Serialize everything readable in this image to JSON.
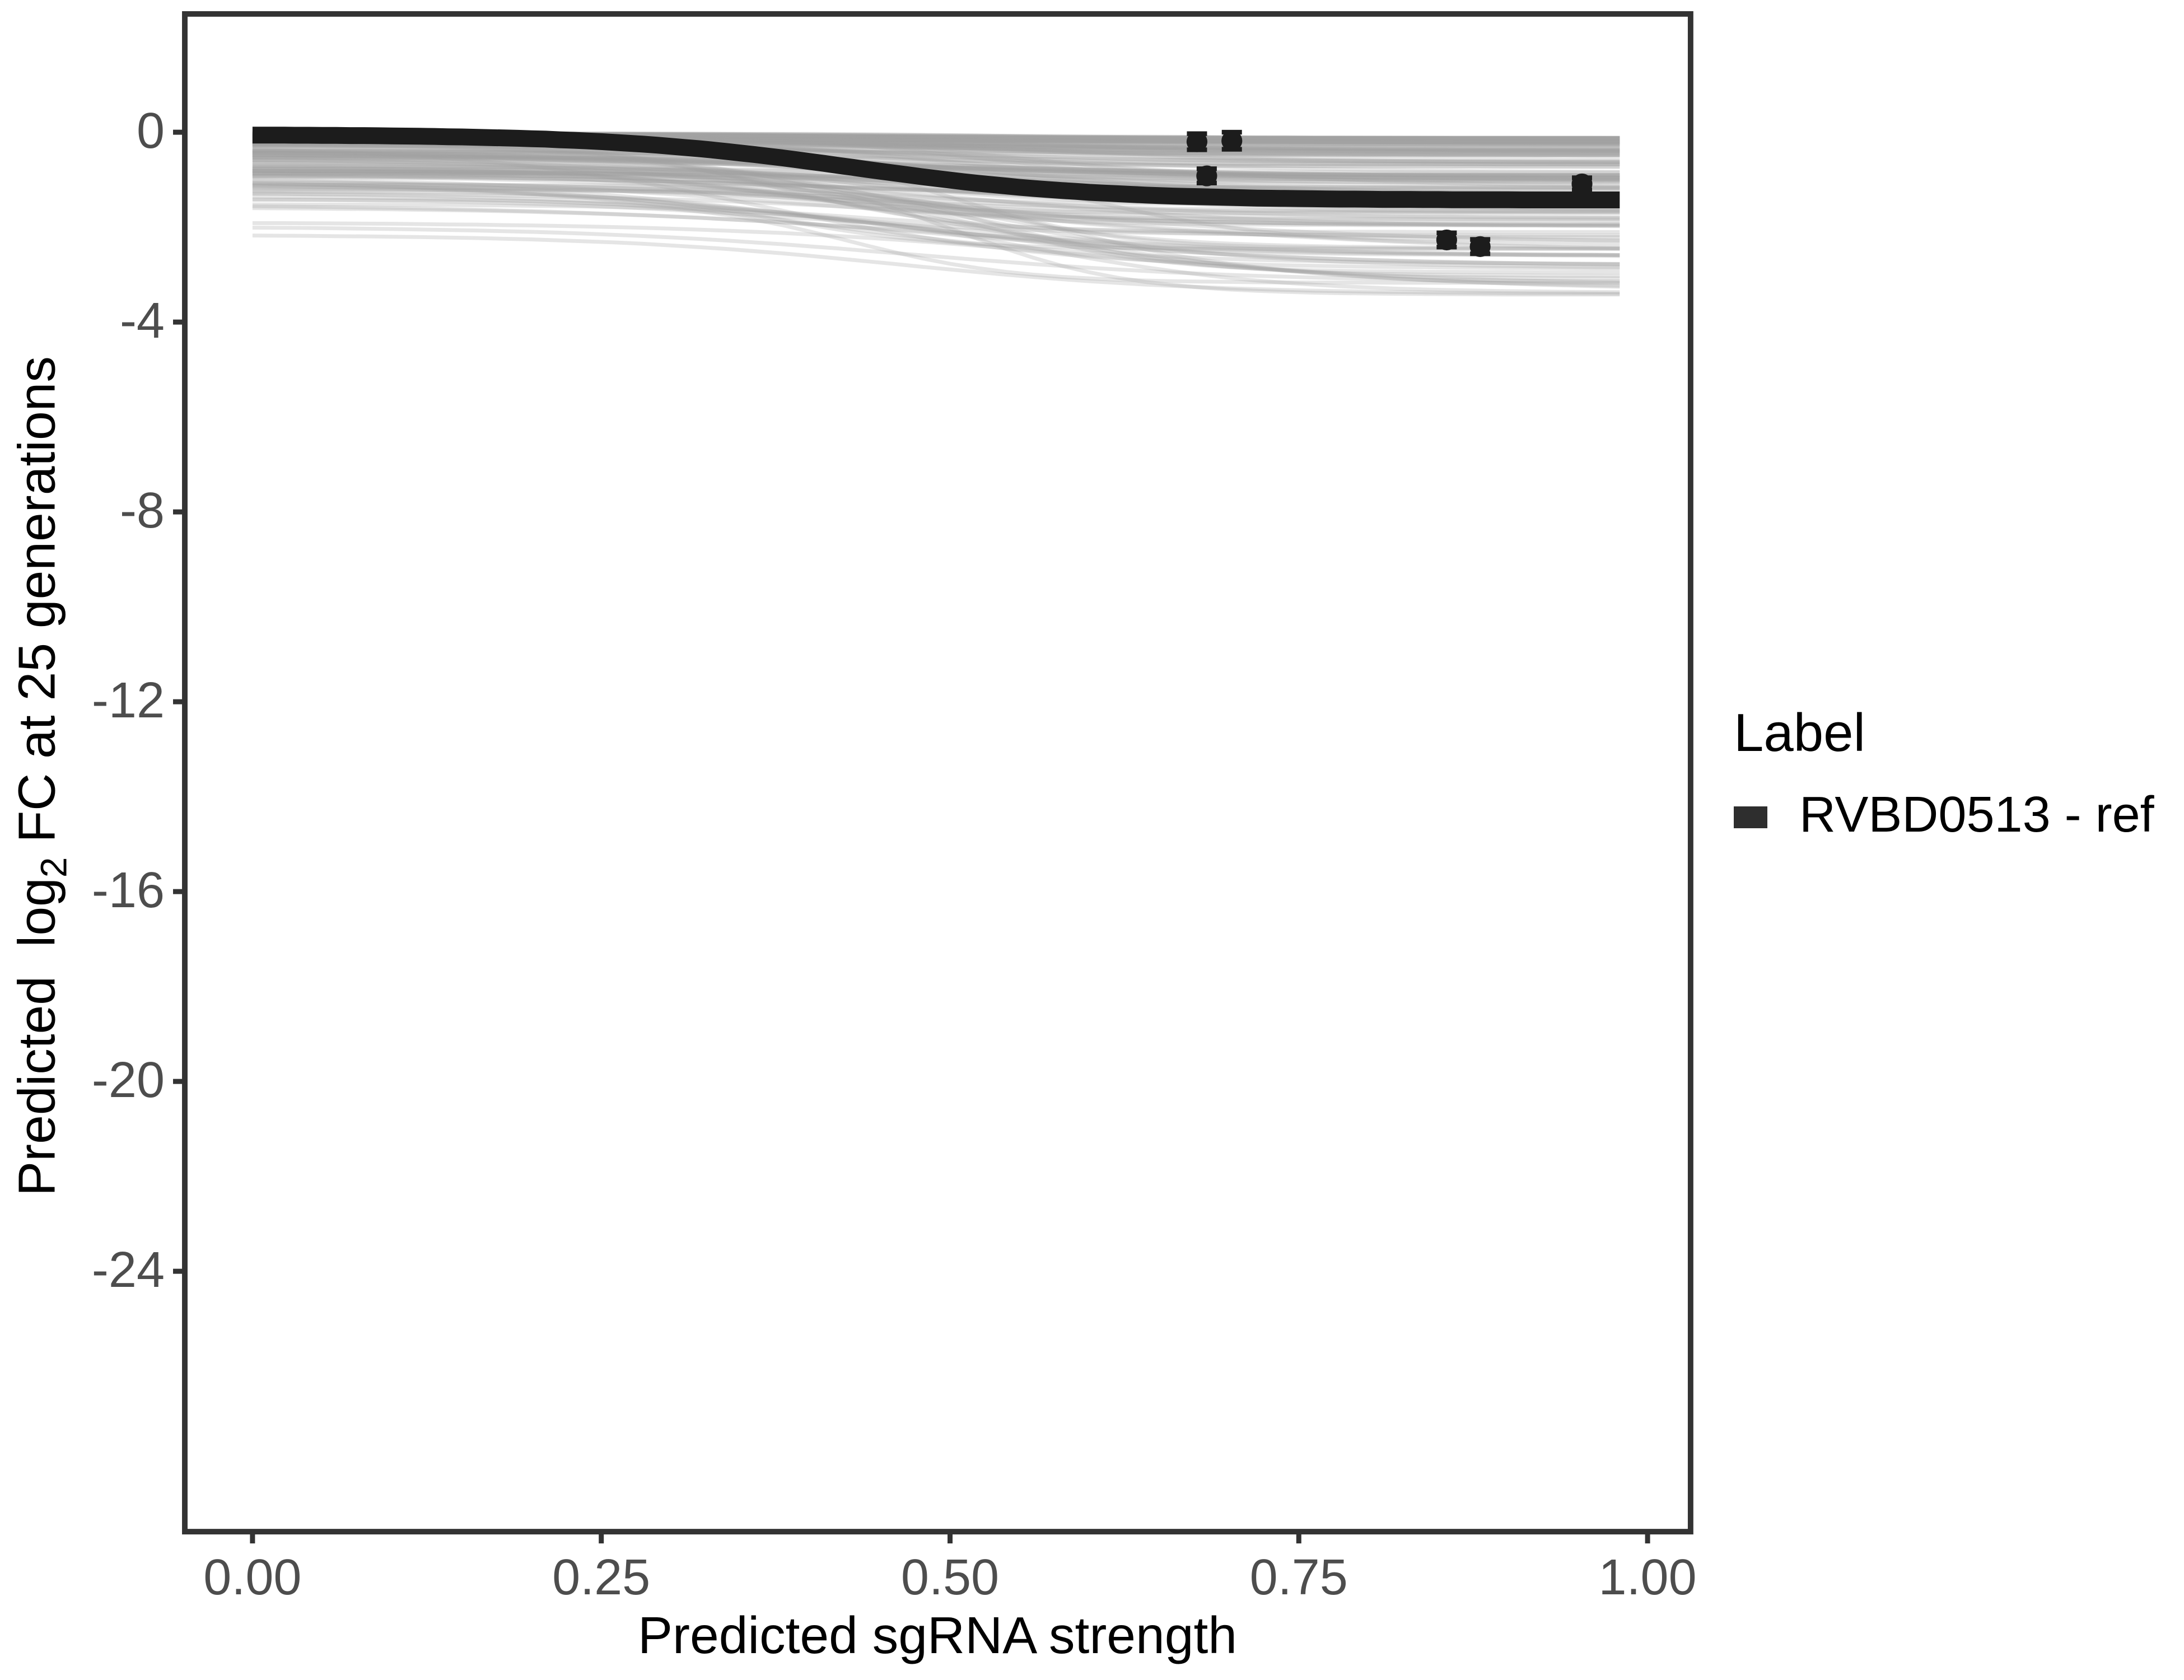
{
  "chart_data": {
    "type": "line",
    "xlabel": "Predicted sgRNA strength",
    "ylabel_parts": {
      "prefix": "Predicted  log",
      "subscript": "2",
      "suffix": " FC at 25 generations"
    },
    "x_ticks": {
      "values": [
        0,
        0.25,
        0.5,
        0.75,
        1.0
      ],
      "labels": [
        "0.00",
        "0.25",
        "0.50",
        "0.75",
        "1.00"
      ]
    },
    "y_ticks": {
      "values": [
        0,
        -4,
        -8,
        -12,
        -16,
        -20,
        -24
      ],
      "labels": [
        "0",
        "-4",
        "-8",
        "-12",
        "-16",
        "-20",
        "-24"
      ]
    },
    "x_data_range": [
      0,
      0.98
    ],
    "panel_value_limits": {
      "x": [
        -0.147,
        1.127
      ],
      "y": [
        -29.5,
        2.5
      ]
    },
    "grid": "off",
    "legend": {
      "title": "Label",
      "position": "right",
      "items": [
        {
          "label": "RVBD0513 - ref",
          "color": "#2e2e2e"
        }
      ]
    },
    "ref_curve": {
      "label": "RVBD0513 - ref",
      "color": "#1c1c1c",
      "stroke_width": 10,
      "model": "v(x) = base - depth / (1 + exp(-(x - midpoint)/steepness))",
      "base": -0.05,
      "depth": 1.38,
      "midpoint": 0.43,
      "steepness": 0.085,
      "sampled_points": [
        [
          0.0,
          -0.06
        ],
        [
          0.1,
          -0.08
        ],
        [
          0.2,
          -0.14
        ],
        [
          0.25,
          -0.22
        ],
        [
          0.3,
          -0.31
        ],
        [
          0.35,
          -0.46
        ],
        [
          0.4,
          -0.69
        ],
        [
          0.45,
          -0.87
        ],
        [
          0.5,
          -1.01
        ],
        [
          0.55,
          -1.16
        ],
        [
          0.6,
          -1.27
        ],
        [
          0.65,
          -1.33
        ],
        [
          0.7,
          -1.38
        ],
        [
          0.75,
          -1.4
        ],
        [
          0.8,
          -1.41
        ],
        [
          0.85,
          -1.42
        ],
        [
          0.9,
          -1.43
        ],
        [
          0.95,
          -1.43
        ],
        [
          0.98,
          -1.43
        ]
      ]
    },
    "ensemble_curves": {
      "description": "bundle of translucent gray sigmoid prediction curves forming a gradient band from ~0 to ~-3.5",
      "count": 150,
      "seed": 42,
      "color": "#a0a0a0",
      "opacity": 0.28,
      "stroke_width": 2.3,
      "final_depth_range": [
        0.12,
        3.45
      ],
      "start_depth_fraction_range": [
        0.1,
        0.7
      ],
      "start_depth_cap": 2.5,
      "midpoint_range": [
        0.36,
        0.6
      ],
      "steepness_range": [
        0.055,
        0.15
      ]
    },
    "points": {
      "color": "#1c1c1c",
      "radius": 6.2,
      "errorbar_cap_width": 12,
      "errorbar_stroke_width": 2.8,
      "items": [
        {
          "x": 0.677,
          "y": -0.2,
          "err": 0.17
        },
        {
          "x": 0.702,
          "y": -0.18,
          "err": 0.18
        },
        {
          "x": 0.684,
          "y": -0.92,
          "err": 0.15
        },
        {
          "x": 0.856,
          "y": -2.27,
          "err": 0.15
        },
        {
          "x": 0.88,
          "y": -2.41,
          "err": 0.15
        },
        {
          "x": 0.953,
          "y": -1.09,
          "err": 0.13
        }
      ]
    },
    "style": {
      "panel_background": "#ffffff",
      "panel_border_color": "#333333",
      "panel_border_width": 3.3,
      "tick_color": "#333333",
      "tick_length": 7,
      "tick_label_color": "#4d4d4d"
    }
  }
}
